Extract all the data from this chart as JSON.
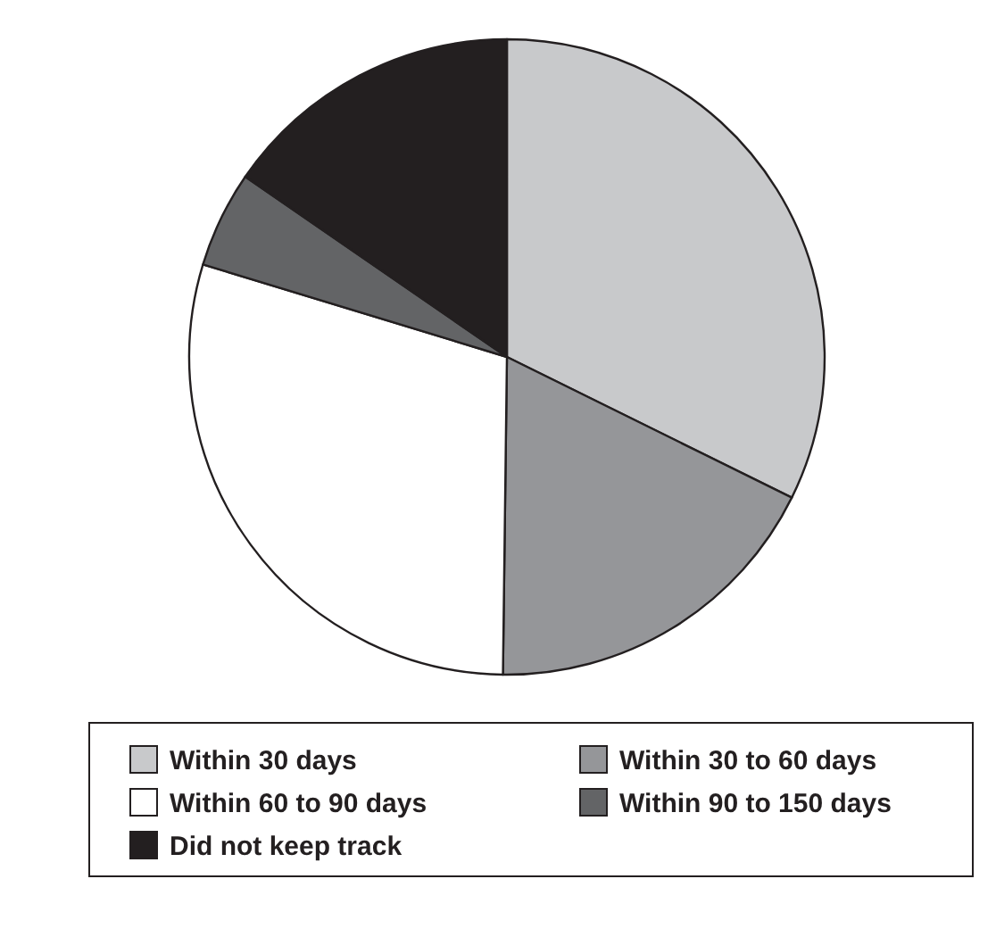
{
  "chart_data": {
    "type": "pie",
    "categories": [
      "Within 30 days",
      "Within 30 to 60 days",
      "Within 60 to 90 days",
      "Within 90 to 150 days",
      "Did not keep track"
    ],
    "values": [
      32.3,
      17.9,
      29.5,
      4.9,
      15.4
    ],
    "colors": [
      "#c8c9cb",
      "#959699",
      "#ffffff",
      "#636466",
      "#231f20"
    ],
    "legend": "bottom"
  }
}
